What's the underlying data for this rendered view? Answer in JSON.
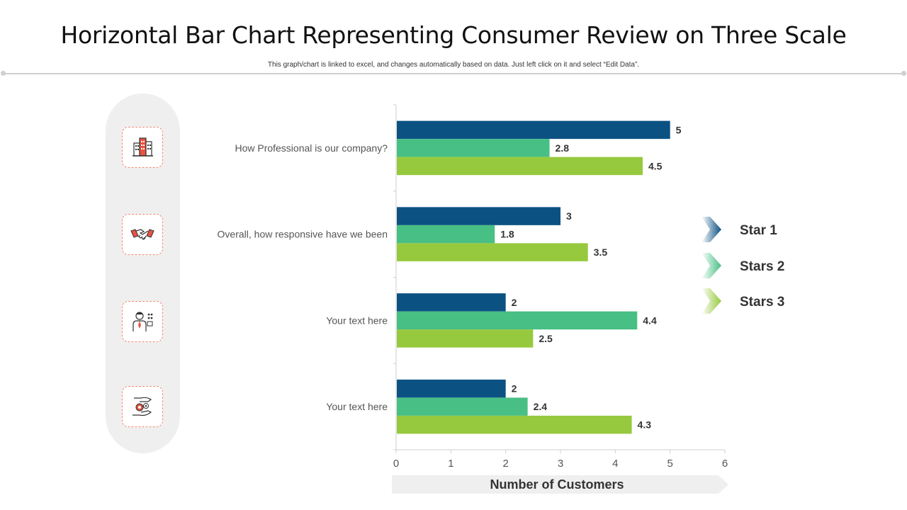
{
  "header": {
    "title": "Horizontal Bar Chart Representing  Consumer Review on Three Scale",
    "subtitle": "This graph/chart is linked to excel, and changes automatically based on data. Just left click on it and select “Edit Data”."
  },
  "icons": [
    {
      "name": "office-building-icon"
    },
    {
      "name": "handshake-icon"
    },
    {
      "name": "businessman-icon"
    },
    {
      "name": "hands-money-icon"
    }
  ],
  "colors": {
    "star1": "#0b5283",
    "stars2": "#48bf84",
    "stars3": "#96c93d",
    "icon_accent": "#e8533f"
  },
  "chart_data": {
    "type": "bar",
    "orientation": "horizontal",
    "categories": [
      "How Professional is our company?",
      "Overall, how responsive have we been",
      "Your text here",
      "Your text here"
    ],
    "series": [
      {
        "name": "Star 1",
        "values": [
          5,
          3,
          2,
          2
        ]
      },
      {
        "name": "Stars 2",
        "values": [
          2.8,
          1.8,
          4.4,
          2.4
        ]
      },
      {
        "name": "Stars 3",
        "values": [
          4.5,
          3.5,
          2.5,
          4.3
        ]
      }
    ],
    "xlabel": "Number of Customers",
    "ylabel": "",
    "xlim": [
      0,
      6
    ],
    "xticks": [
      0,
      1,
      2,
      3,
      4,
      5,
      6
    ],
    "grid": false,
    "legend": "right"
  }
}
